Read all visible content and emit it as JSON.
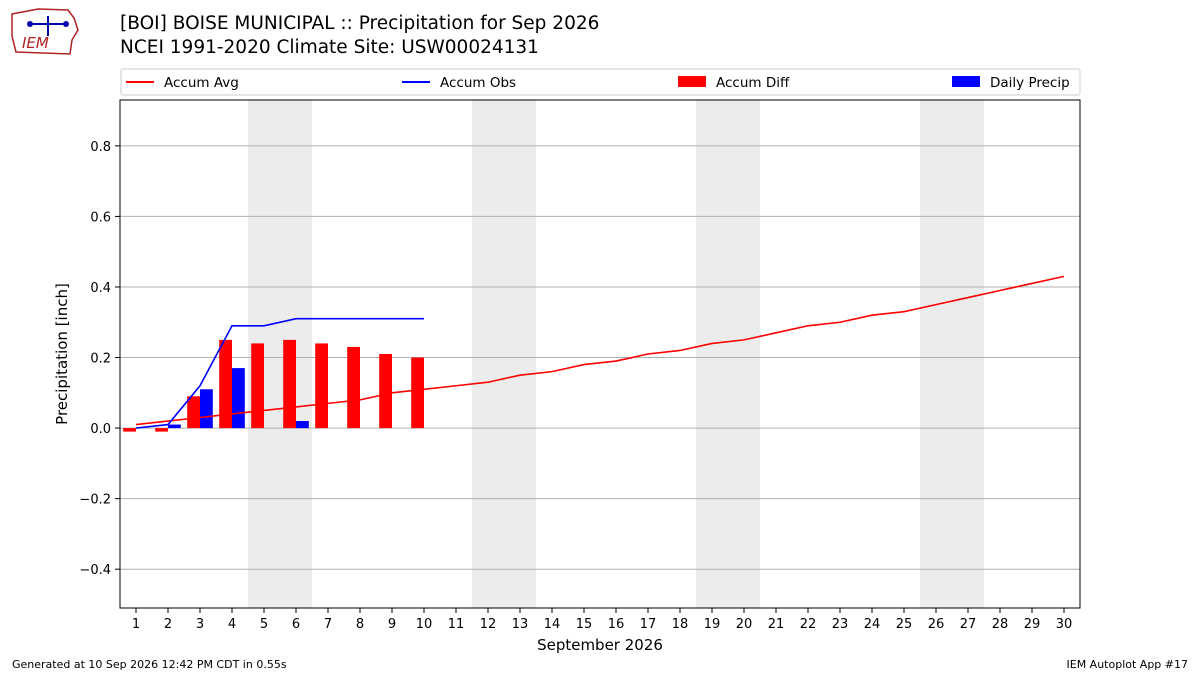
{
  "header": {
    "title_line1": "[BOI] BOISE MUNICIPAL :: Precipitation for Sep 2026",
    "title_line2": "NCEI 1991-2020 Climate Site: USW00024131",
    "logo_text": "IEM"
  },
  "footer": {
    "generated": "Generated at 10 Sep 2026 12:42 PM CDT in 0.55s",
    "app": "IEM Autoplot App #17"
  },
  "chart_data": {
    "type": "bar",
    "xlabel": "September 2026",
    "ylabel": "Precipitation [inch]",
    "ylim": [
      -0.51,
      0.93
    ],
    "xlim": [
      0.5,
      30.5
    ],
    "yticks": [
      -0.4,
      -0.2,
      0.0,
      0.2,
      0.4,
      0.6,
      0.8
    ],
    "ytick_labels": [
      "−0.4",
      "−0.2",
      "0.0",
      "0.2",
      "0.4",
      "0.6",
      "0.8"
    ],
    "days": [
      1,
      2,
      3,
      4,
      5,
      6,
      7,
      8,
      9,
      10,
      11,
      12,
      13,
      14,
      15,
      16,
      17,
      18,
      19,
      20,
      21,
      22,
      23,
      24,
      25,
      26,
      27,
      28,
      29,
      30
    ],
    "grid": "horizontal",
    "legend_position": "top",
    "weekend_shading": [
      [
        4.5,
        6.5
      ],
      [
        11.5,
        13.5
      ],
      [
        18.5,
        20.5
      ],
      [
        25.5,
        27.5
      ]
    ],
    "series": [
      {
        "name": "Accum Avg",
        "kind": "line",
        "color": "#ff0000",
        "x": [
          1,
          2,
          3,
          4,
          5,
          6,
          7,
          8,
          9,
          10,
          11,
          12,
          13,
          14,
          15,
          16,
          17,
          18,
          19,
          20,
          21,
          22,
          23,
          24,
          25,
          26,
          27,
          28,
          29,
          30
        ],
        "values": [
          0.01,
          0.02,
          0.03,
          0.04,
          0.05,
          0.06,
          0.07,
          0.08,
          0.1,
          0.11,
          0.12,
          0.13,
          0.15,
          0.16,
          0.18,
          0.19,
          0.21,
          0.22,
          0.24,
          0.25,
          0.27,
          0.29,
          0.3,
          0.32,
          0.33,
          0.35,
          0.37,
          0.39,
          0.41,
          0.43
        ]
      },
      {
        "name": "Accum Obs",
        "kind": "line",
        "color": "#0000ff",
        "x": [
          1,
          2,
          3,
          4,
          5,
          6,
          7,
          8,
          9,
          10
        ],
        "values": [
          0.0,
          0.01,
          0.12,
          0.29,
          0.29,
          0.31,
          0.31,
          0.31,
          0.31,
          0.31
        ]
      },
      {
        "name": "Accum Diff",
        "kind": "bar",
        "color": "#ff0000",
        "x": [
          1,
          2,
          3,
          4,
          5,
          6,
          7,
          8,
          9,
          10
        ],
        "values": [
          -0.01,
          -0.01,
          0.09,
          0.25,
          0.24,
          0.25,
          0.24,
          0.23,
          0.21,
          0.2
        ]
      },
      {
        "name": "Daily Precip",
        "kind": "bar",
        "color": "#0000ff",
        "x": [
          1,
          2,
          3,
          4,
          5,
          6,
          7,
          8,
          9,
          10
        ],
        "values": [
          0.0,
          0.01,
          0.11,
          0.17,
          0.0,
          0.02,
          0.0,
          0.0,
          0.0,
          0.0
        ]
      }
    ]
  }
}
